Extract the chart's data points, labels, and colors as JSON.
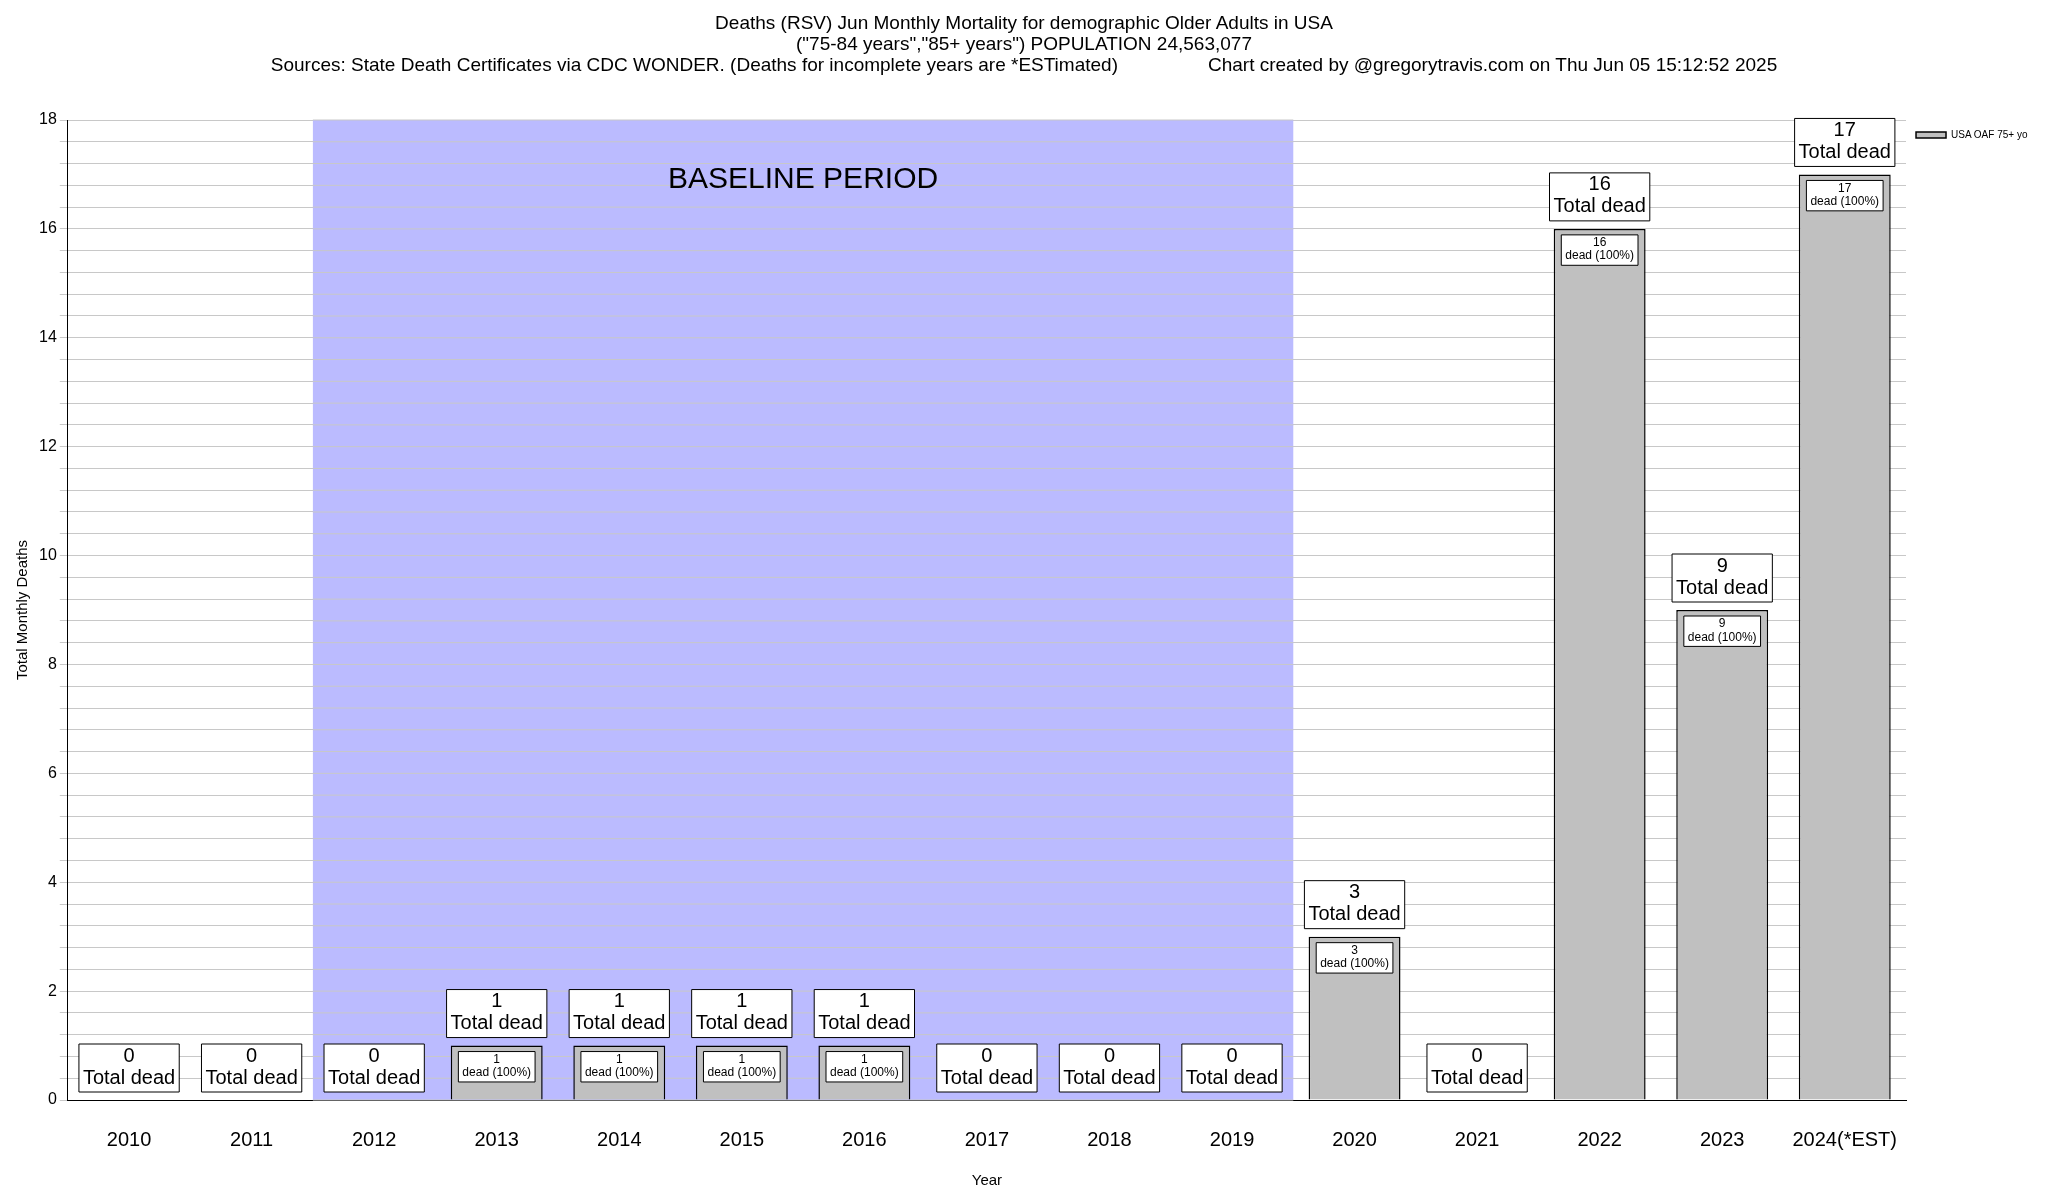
{
  "chart_data": {
    "type": "bar",
    "title": "Deaths (RSV) Jun Monthly Mortality for demographic Older Adults in USA",
    "subtitle": "(\"75-84 years\",\"85+ years\") POPULATION 24,563,077",
    "annotations": [
      "Sources: State Death Certificates via CDC WONDER. (Deaths for incomplete years are *ESTimated)",
      "Chart created by @gregorytravis.com on Thu Jun 05 15:12:52 2025"
    ],
    "xlabel": "Year",
    "ylabel": "Total Monthly Deaths",
    "categories": [
      "2010",
      "2011",
      "2012",
      "2013",
      "2014",
      "2015",
      "2016",
      "2017",
      "2018",
      "2019",
      "2020",
      "2021",
      "2022",
      "2023",
      "2024(*EST)"
    ],
    "series": [
      {
        "name": "USA OAF 75+ yo",
        "color": "#c0c0c0",
        "values": [
          0,
          0,
          0,
          1,
          1,
          1,
          1,
          0,
          0,
          0,
          3,
          0,
          16,
          9,
          17
        ],
        "value_labels": [
          null,
          null,
          null,
          "1\ndead (100%)",
          "1\ndead (100%)",
          "1\ndead (100%)",
          "1\ndead (100%)",
          null,
          null,
          null,
          "3\ndead (100%)",
          null,
          "16\ndead (100%)",
          "9\ndead (100%)",
          "17\ndead (100%)"
        ]
      }
    ],
    "totals": [
      "0\nTotal dead",
      "0\nTotal dead",
      "0\nTotal dead",
      "1\nTotal dead",
      "1\nTotal dead",
      "1\nTotal dead",
      "1\nTotal dead",
      "0\nTotal dead",
      "0\nTotal dead",
      "0\nTotal dead",
      "3\nTotal dead",
      "0\nTotal dead",
      "16\nTotal dead",
      "9\nTotal dead",
      "17\nTotal dead"
    ],
    "bands": [
      {
        "axis": "x",
        "from": "2012",
        "to": "2019",
        "label": "BASELINE PERIOD",
        "color": "#bbbbff"
      }
    ],
    "ylim": [
      0,
      18
    ],
    "yticks": [
      0,
      {
        "value": 0.4,
        "label": null
      },
      {
        "value": 0.8,
        "label": null
      },
      {
        "value": 1.2,
        "label": null
      },
      {
        "value": 1.6,
        "label": null
      },
      2,
      {
        "value": 2.4,
        "label": null
      },
      {
        "value": 2.8,
        "label": null
      },
      {
        "value": 3.2,
        "label": null
      },
      {
        "value": 3.6,
        "label": null
      },
      4,
      {
        "value": 4.4,
        "label": null
      },
      {
        "value": 4.8,
        "label": null
      },
      {
        "value": 5.2,
        "label": null
      },
      {
        "value": 5.6,
        "label": null
      },
      6,
      {
        "value": 6.4,
        "label": null
      },
      {
        "value": 6.8,
        "label": null
      },
      {
        "value": 7.2,
        "label": null
      },
      {
        "value": 7.6,
        "label": null
      },
      8,
      {
        "value": 8.4,
        "label": null
      },
      {
        "value": 8.8,
        "label": null
      },
      {
        "value": 9.2,
        "label": null
      },
      {
        "value": 9.6,
        "label": null
      },
      10,
      {
        "value": 10.4,
        "label": null
      },
      {
        "value": 10.8,
        "label": null
      },
      {
        "value": 11.2,
        "label": null
      },
      {
        "value": 11.6,
        "label": null
      },
      12,
      {
        "value": 12.4,
        "label": null
      },
      {
        "value": 12.8,
        "label": null
      },
      {
        "value": 13.2,
        "label": null
      },
      {
        "value": 13.6,
        "label": null
      },
      14,
      {
        "value": 14.4,
        "label": null
      },
      {
        "value": 14.8,
        "label": null
      },
      {
        "value": 15.2,
        "label": null
      },
      {
        "value": 15.6,
        "label": null
      },
      16,
      {
        "value": 16.4,
        "label": null
      },
      {
        "value": 16.8,
        "label": null
      },
      {
        "value": 17.2,
        "label": null
      },
      {
        "value": 17.6,
        "label": null
      },
      18
    ],
    "grid": "y",
    "legend": "top right"
  }
}
